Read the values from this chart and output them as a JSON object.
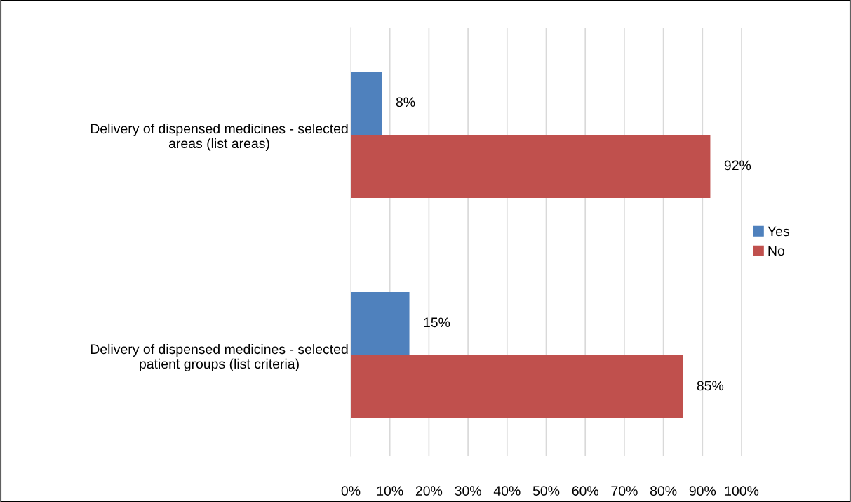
{
  "chart_data": {
    "type": "bar",
    "orientation": "horizontal",
    "categories": [
      "Delivery of dispensed medicines - selected areas (list areas)",
      "Delivery of dispensed medicines - selected patient groups (list criteria)"
    ],
    "series": [
      {
        "name": "Yes",
        "color": "#4f81bd",
        "values": [
          8,
          15
        ],
        "value_labels": [
          "8%",
          "15%"
        ]
      },
      {
        "name": "No",
        "color": "#c0504d",
        "values": [
          92,
          85
        ],
        "value_labels": [
          "92%",
          "85%"
        ]
      }
    ],
    "xlim": [
      0,
      100
    ],
    "xticks": [
      {
        "value": 0,
        "label": "0%"
      },
      {
        "value": 10,
        "label": "10%"
      },
      {
        "value": 20,
        "label": "20%"
      },
      {
        "value": 30,
        "label": "30%"
      },
      {
        "value": 40,
        "label": "40%"
      },
      {
        "value": 50,
        "label": "50%"
      },
      {
        "value": 60,
        "label": "60%"
      },
      {
        "value": 70,
        "label": "70%"
      },
      {
        "value": 80,
        "label": "80%"
      },
      {
        "value": 90,
        "label": "90%"
      },
      {
        "value": 100,
        "label": "100%"
      }
    ],
    "grid": "x",
    "legend": "right"
  }
}
